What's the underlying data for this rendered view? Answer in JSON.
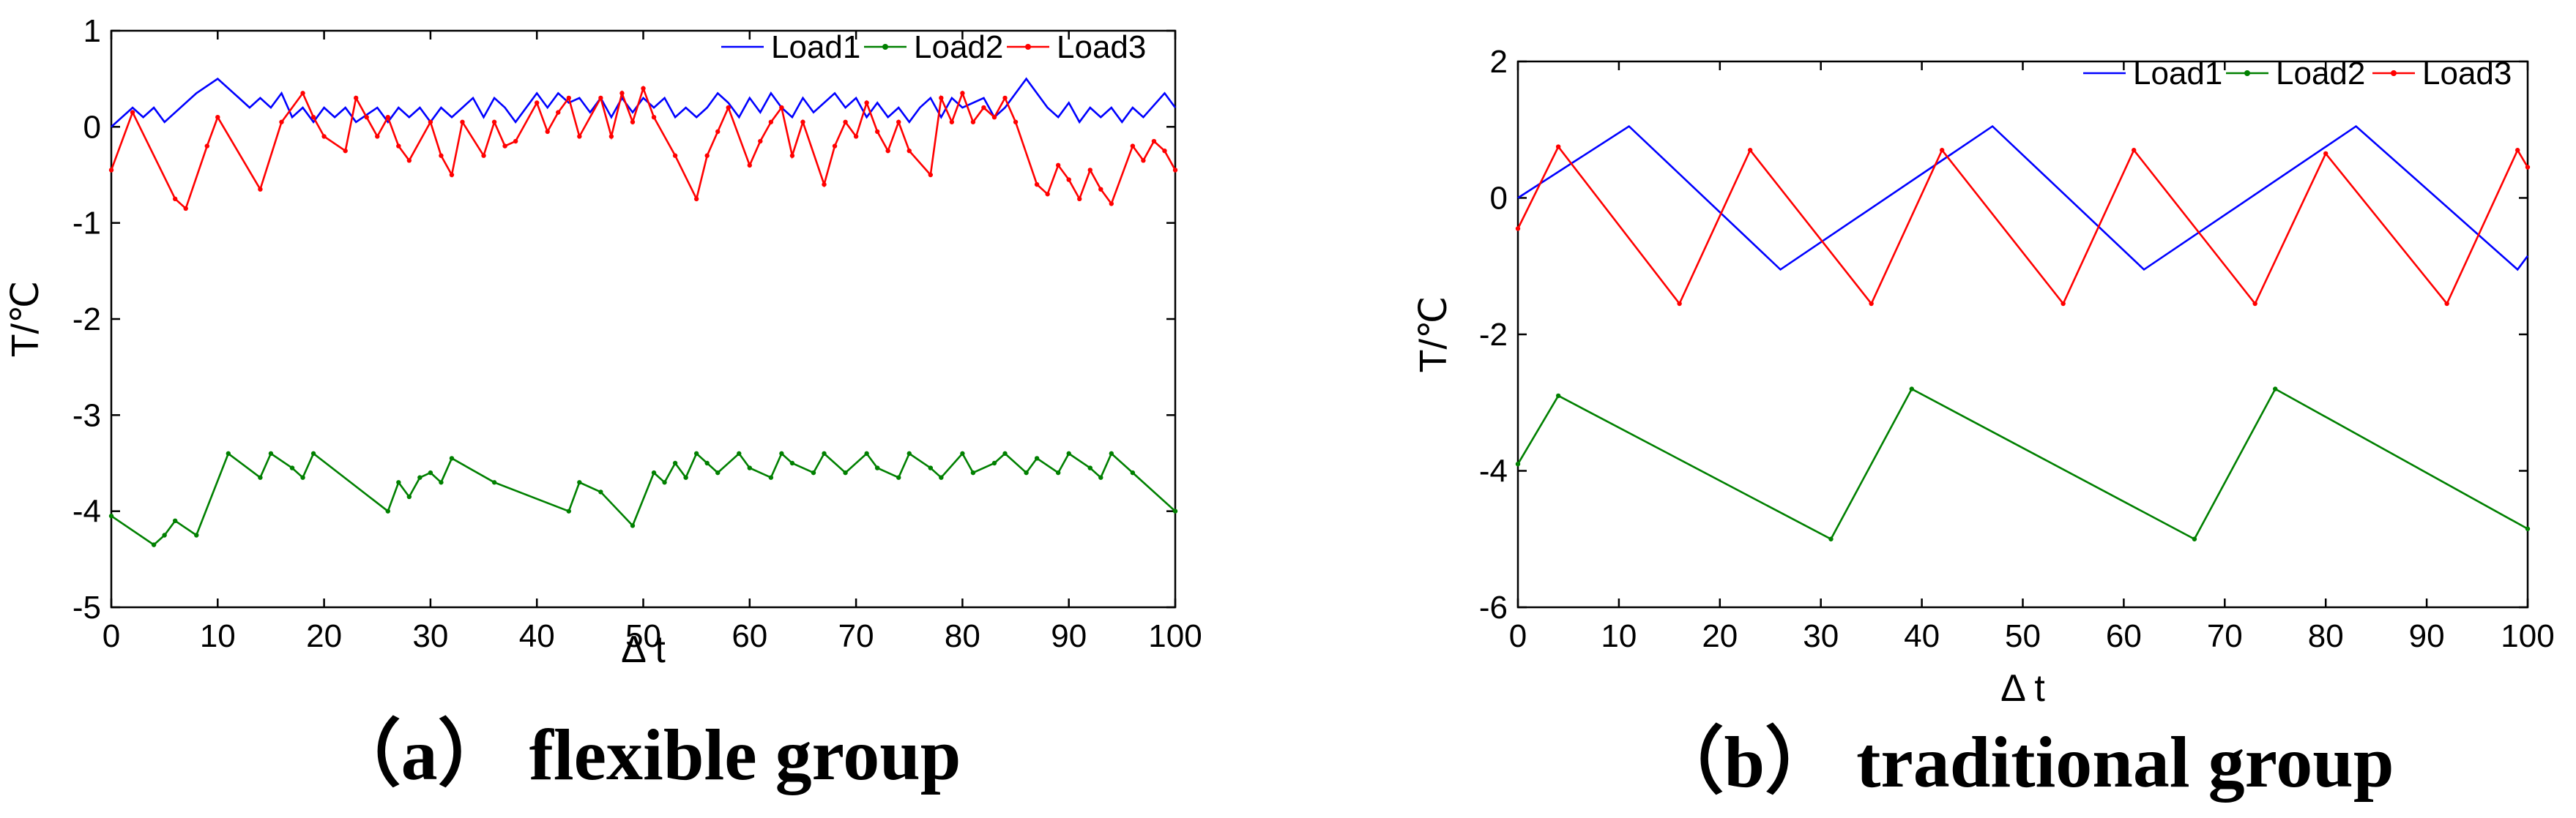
{
  "chart_data": [
    {
      "type": "line",
      "caption": "（a）  flexible group",
      "xlabel": "Δ t",
      "ylabel": "T/℃",
      "xlim": [
        0,
        100
      ],
      "ylim": [
        -5,
        1
      ],
      "xticks": [
        0,
        10,
        20,
        30,
        40,
        50,
        60,
        70,
        80,
        90,
        100
      ],
      "yticks": [
        1,
        0,
        -1,
        -2,
        -3,
        -4,
        -5
      ],
      "legend_position": "top-right",
      "series": [
        {
          "name": "Load1",
          "color": "#0000ff",
          "marker": "none",
          "x": [
            0,
            2,
            3,
            4,
            5,
            8,
            10,
            12,
            13,
            14,
            15,
            16,
            17,
            18,
            19,
            20,
            21,
            22,
            23,
            25,
            26,
            27,
            28,
            29,
            30,
            31,
            32,
            33,
            34,
            35,
            36,
            37,
            38,
            40,
            41,
            42,
            43,
            44,
            45,
            46,
            47,
            48,
            49,
            50,
            51,
            52,
            53,
            54,
            55,
            56,
            57,
            58,
            59,
            60,
            61,
            62,
            63,
            64,
            65,
            66,
            68,
            69,
            70,
            71,
            72,
            73,
            74,
            75,
            76,
            77,
            78,
            79,
            80,
            82,
            83,
            84,
            86,
            88,
            89,
            90,
            91,
            92,
            93,
            94,
            95,
            96,
            97,
            99,
            100
          ],
          "y": [
            0,
            0.2,
            0.1,
            0.2,
            0.05,
            0.35,
            0.5,
            0.3,
            0.2,
            0.3,
            0.2,
            0.35,
            0.1,
            0.2,
            0.05,
            0.2,
            0.1,
            0.2,
            0.05,
            0.2,
            0.05,
            0.2,
            0.1,
            0.2,
            0.05,
            0.2,
            0.1,
            0.2,
            0.3,
            0.1,
            0.3,
            0.2,
            0.05,
            0.35,
            0.2,
            0.35,
            0.25,
            0.3,
            0.15,
            0.3,
            0.1,
            0.3,
            0.15,
            0.3,
            0.2,
            0.3,
            0.1,
            0.2,
            0.1,
            0.2,
            0.35,
            0.25,
            0.1,
            0.3,
            0.15,
            0.35,
            0.2,
            0.1,
            0.3,
            0.15,
            0.35,
            0.2,
            0.3,
            0.1,
            0.25,
            0.1,
            0.2,
            0.05,
            0.2,
            0.3,
            0.1,
            0.3,
            0.2,
            0.3,
            0.1,
            0.2,
            0.5,
            0.2,
            0.1,
            0.25,
            0.05,
            0.2,
            0.1,
            0.2,
            0.05,
            0.2,
            0.1,
            0.35,
            0.2
          ]
        },
        {
          "name": "Load2",
          "color": "#008000",
          "marker": "dot",
          "x": [
            0,
            4,
            5,
            6,
            8,
            11,
            14,
            15,
            17,
            18,
            19,
            26,
            27,
            28,
            29,
            30,
            31,
            32,
            36,
            43,
            44,
            46,
            49,
            51,
            52,
            53,
            54,
            55,
            56,
            57,
            59,
            60,
            62,
            63,
            64,
            66,
            67,
            69,
            71,
            72,
            74,
            75,
            77,
            78,
            80,
            81,
            83,
            84,
            86,
            87,
            89,
            90,
            92,
            93,
            94,
            96,
            100
          ],
          "y": [
            -4.05,
            -4.35,
            -4.25,
            -4.1,
            -4.25,
            -3.4,
            -3.65,
            -3.4,
            -3.55,
            -3.65,
            -3.4,
            -4.0,
            -3.7,
            -3.85,
            -3.65,
            -3.6,
            -3.7,
            -3.45,
            -3.7,
            -4.0,
            -3.7,
            -3.8,
            -4.15,
            -3.6,
            -3.7,
            -3.5,
            -3.65,
            -3.4,
            -3.5,
            -3.6,
            -3.4,
            -3.55,
            -3.65,
            -3.4,
            -3.5,
            -3.6,
            -3.4,
            -3.6,
            -3.4,
            -3.55,
            -3.65,
            -3.4,
            -3.55,
            -3.65,
            -3.4,
            -3.6,
            -3.5,
            -3.4,
            -3.6,
            -3.45,
            -3.6,
            -3.4,
            -3.55,
            -3.65,
            -3.4,
            -3.6,
            -4.0
          ]
        },
        {
          "name": "Load3",
          "color": "#ff0000",
          "marker": "dot",
          "x": [
            0,
            2,
            6,
            7,
            9,
            10,
            14,
            16,
            18,
            19,
            20,
            22,
            23,
            24,
            25,
            26,
            27,
            28,
            30,
            31,
            32,
            33,
            35,
            36,
            37,
            38,
            40,
            41,
            42,
            43,
            44,
            46,
            47,
            48,
            49,
            50,
            51,
            53,
            55,
            56,
            57,
            58,
            60,
            61,
            62,
            63,
            64,
            65,
            67,
            68,
            69,
            70,
            71,
            72,
            73,
            74,
            75,
            77,
            78,
            79,
            80,
            81,
            82,
            83,
            84,
            85,
            87,
            88,
            89,
            90,
            91,
            92,
            93,
            94,
            96,
            97,
            98,
            99,
            100
          ],
          "y": [
            -0.45,
            0.15,
            -0.75,
            -0.85,
            -0.2,
            0.1,
            -0.65,
            0.05,
            0.35,
            0.1,
            -0.1,
            -0.25,
            0.3,
            0.1,
            -0.1,
            0.1,
            -0.2,
            -0.35,
            0.05,
            -0.3,
            -0.5,
            0.05,
            -0.3,
            0.05,
            -0.2,
            -0.15,
            0.25,
            -0.05,
            0.15,
            0.3,
            -0.1,
            0.3,
            -0.1,
            0.35,
            0.05,
            0.4,
            0.1,
            -0.3,
            -0.75,
            -0.3,
            -0.05,
            0.2,
            -0.4,
            -0.15,
            0.05,
            0.2,
            -0.3,
            0.05,
            -0.6,
            -0.2,
            0.05,
            -0.1,
            0.25,
            -0.05,
            -0.25,
            0.05,
            -0.25,
            -0.5,
            0.3,
            0.05,
            0.35,
            0.05,
            0.2,
            0.1,
            0.3,
            0.05,
            -0.6,
            -0.7,
            -0.4,
            -0.55,
            -0.75,
            -0.45,
            -0.65,
            -0.8,
            -0.2,
            -0.35,
            -0.15,
            -0.25,
            -0.45
          ]
        }
      ]
    },
    {
      "type": "line",
      "caption": "（b）  traditional group",
      "xlabel": "Δ t",
      "ylabel": "T/℃",
      "xlim": [
        0,
        100
      ],
      "ylim": [
        -6,
        2
      ],
      "xticks": [
        0,
        10,
        20,
        30,
        40,
        50,
        60,
        70,
        80,
        90,
        100
      ],
      "yticks": [
        2,
        0,
        -2,
        -4,
        -6
      ],
      "legend_position": "top-right",
      "series": [
        {
          "name": "Load1",
          "color": "#0000ff",
          "marker": "none",
          "x": [
            0,
            11,
            26,
            47,
            62,
            83,
            99,
            100
          ],
          "y": [
            0,
            1.05,
            -1.05,
            1.05,
            -1.05,
            1.05,
            -1.05,
            -0.85
          ]
        },
        {
          "name": "Load2",
          "color": "#008000",
          "marker": "dot",
          "x": [
            0,
            4,
            31,
            39,
            67,
            75,
            100
          ],
          "y": [
            -3.9,
            -2.9,
            -5.0,
            -2.8,
            -5.0,
            -2.8,
            -4.85
          ]
        },
        {
          "name": "Load3",
          "color": "#ff0000",
          "marker": "dot",
          "x": [
            0,
            4,
            16,
            23,
            35,
            42,
            54,
            61,
            73,
            80,
            92,
            99,
            100
          ],
          "y": [
            -0.45,
            0.75,
            -1.55,
            0.7,
            -1.55,
            0.7,
            -1.55,
            0.7,
            -1.55,
            0.65,
            -1.55,
            0.7,
            0.45
          ]
        }
      ]
    }
  ]
}
